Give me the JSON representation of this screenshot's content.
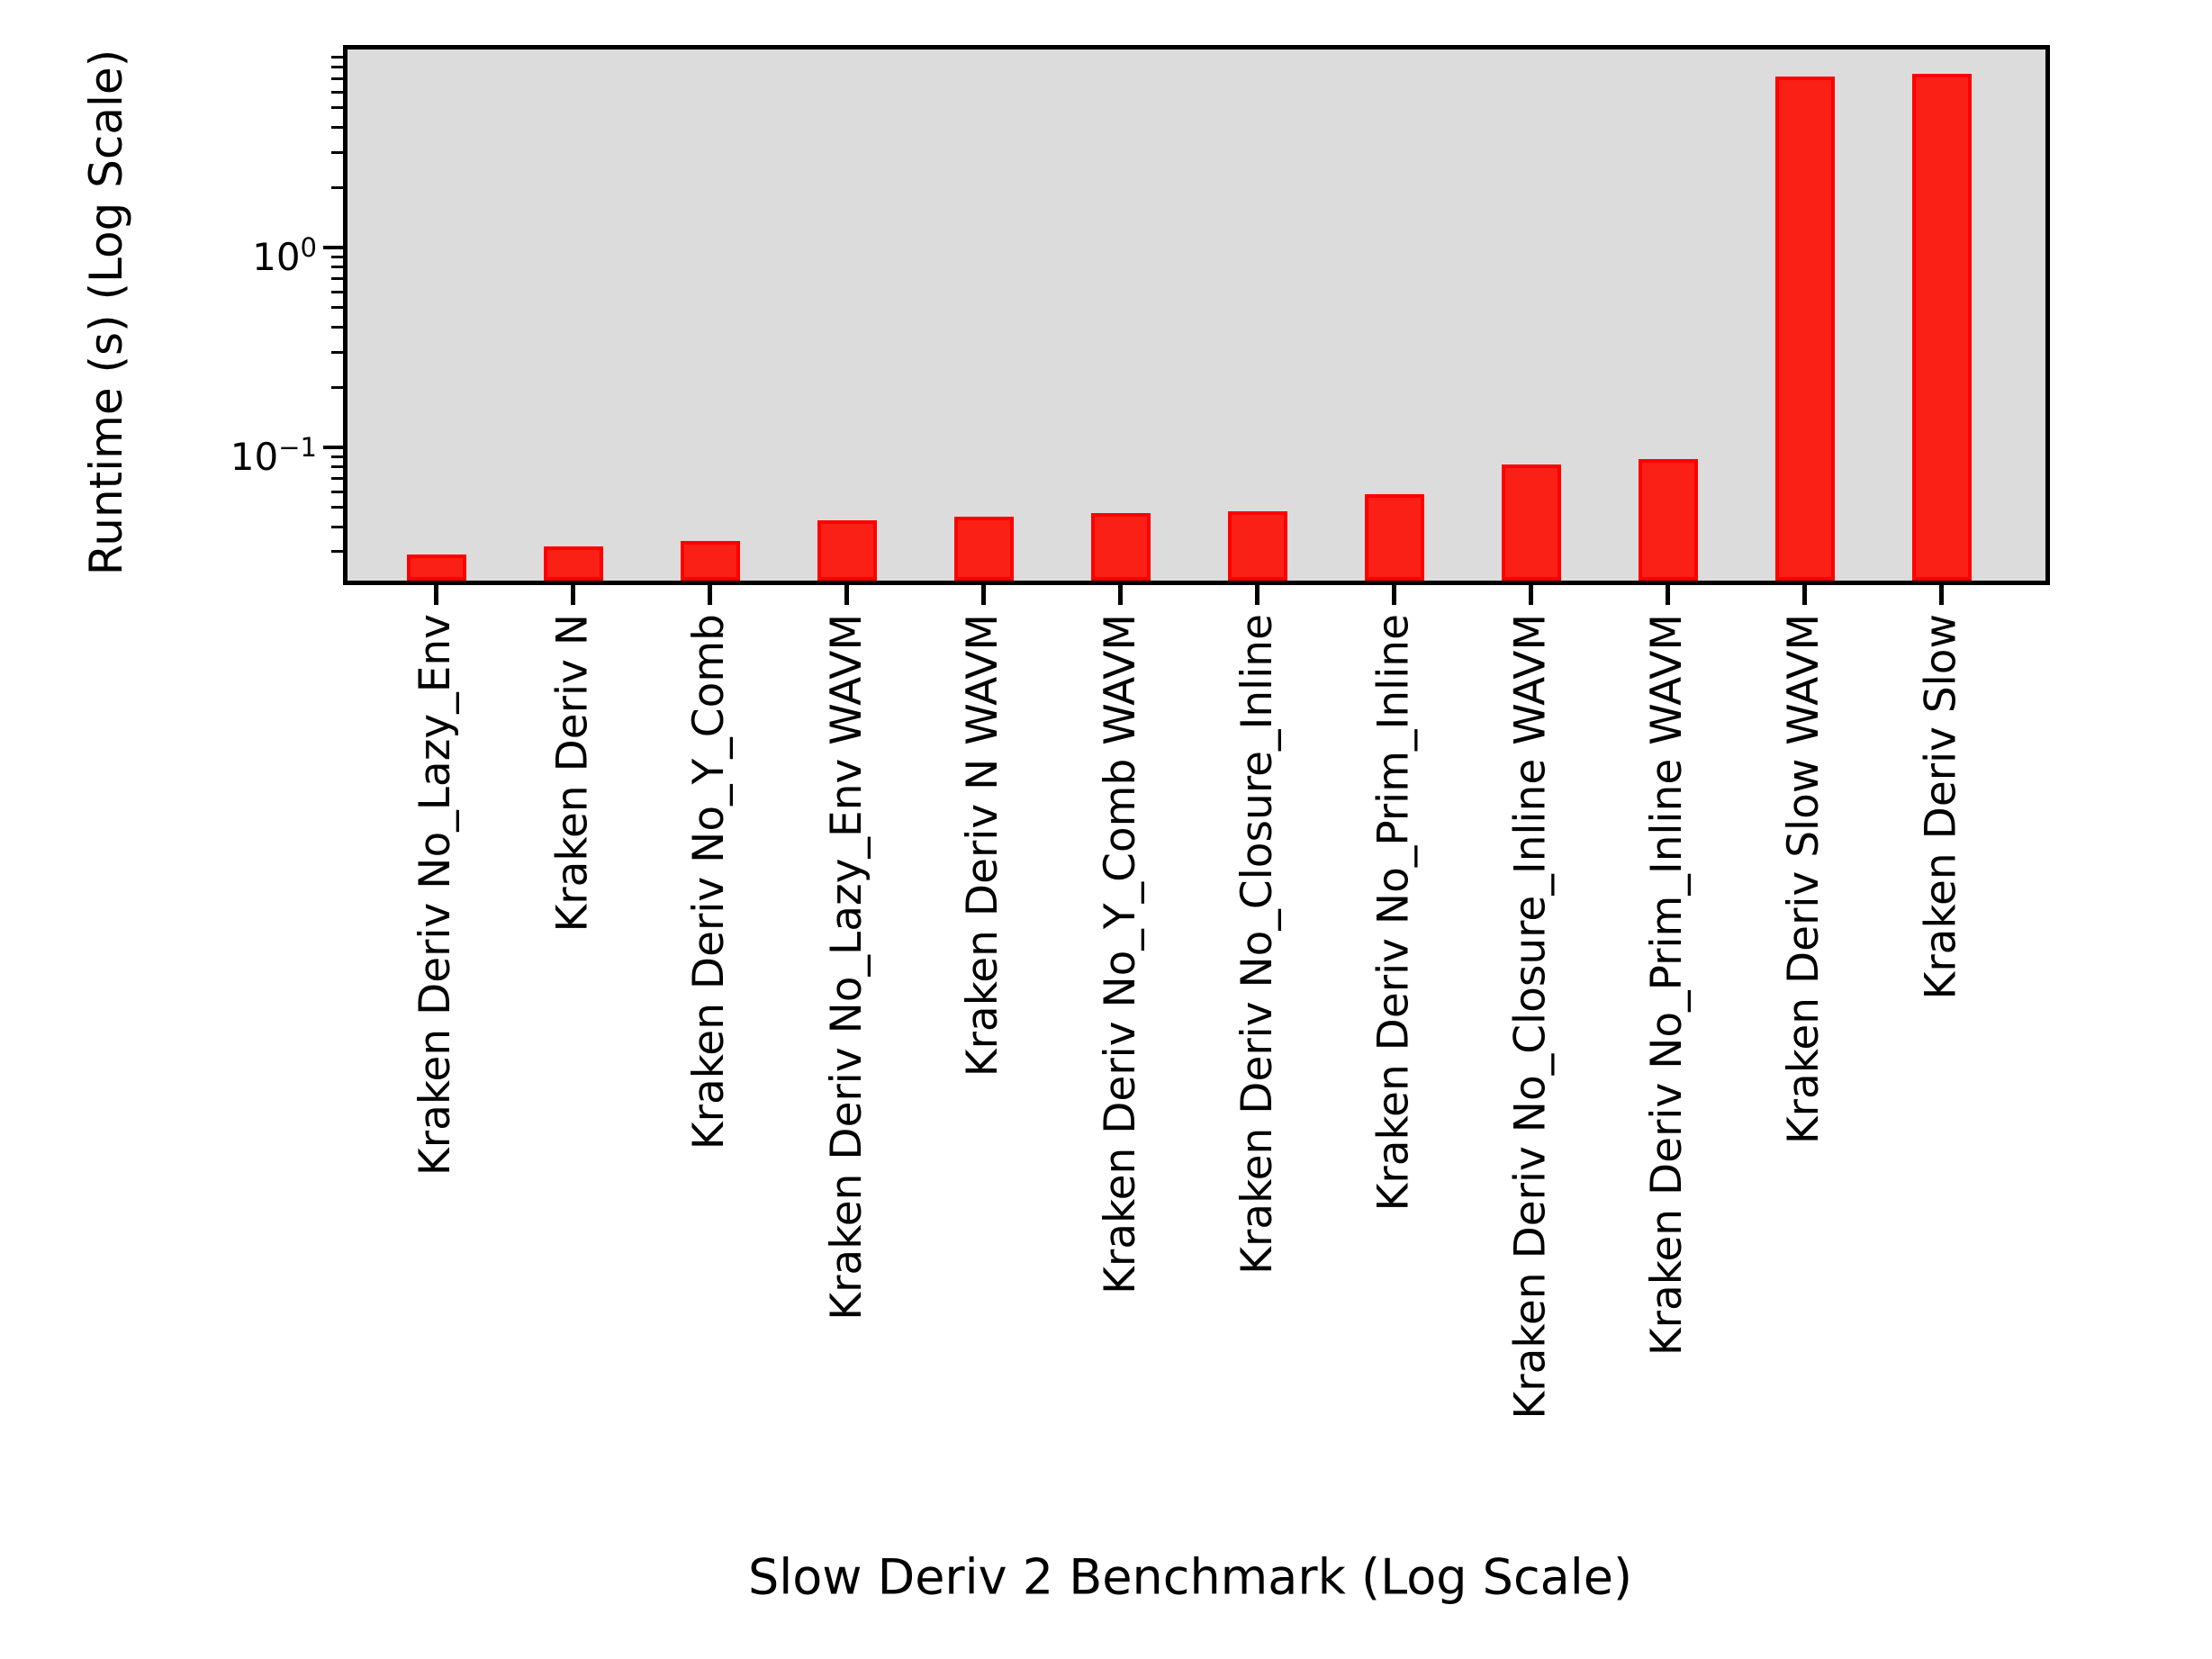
{
  "figure": {
    "background": "#ffffff"
  },
  "plot": {
    "background": "#dcdcdc",
    "border_color": "#000000"
  },
  "yaxis": {
    "label": "Runtime (s) (Log Scale)",
    "ticks": [
      {
        "base": "10",
        "exp": "0",
        "value": 1
      },
      {
        "base": "10",
        "exp": "−1",
        "value": 0.1
      }
    ]
  },
  "xaxis": {
    "label": "Slow Deriv 2 Benchmark (Log Scale)"
  },
  "legend": {
    "visible": true,
    "entries": [],
    "position": "upper right"
  },
  "chart_data": {
    "type": "bar",
    "categories": [
      "Kraken Deriv No_Lazy_Env",
      "Kraken Deriv N",
      "Kraken Deriv No_Y_Comb",
      "Kraken Deriv No_Lazy_Env WAVM",
      "Kraken Deriv N WAVM",
      "Kraken Deriv No_Y_Comb WAVM",
      "Kraken Deriv No_Closure_Inline",
      "Kraken Deriv No_Prim_Inline",
      "Kraken Deriv No_Closure_Inline WAVM",
      "Kraken Deriv No_Prim_Inline WAVM",
      "Kraken Deriv Slow WAVM",
      "Kraken Deriv Slow"
    ],
    "values": [
      0.029,
      0.032,
      0.034,
      0.043,
      0.045,
      0.047,
      0.048,
      0.058,
      0.082,
      0.087,
      7.2,
      7.4
    ],
    "title": "",
    "xlabel": "Slow Deriv 2 Benchmark (Log Scale)",
    "ylabel": "Runtime (s) (Log Scale)",
    "yscale": "log",
    "ylim": [
      0.0215,
      9.8
    ],
    "grid": false,
    "bar_color": "#fa2015",
    "bar_edge_color": "#ff0000",
    "legend_position": "upper right"
  }
}
